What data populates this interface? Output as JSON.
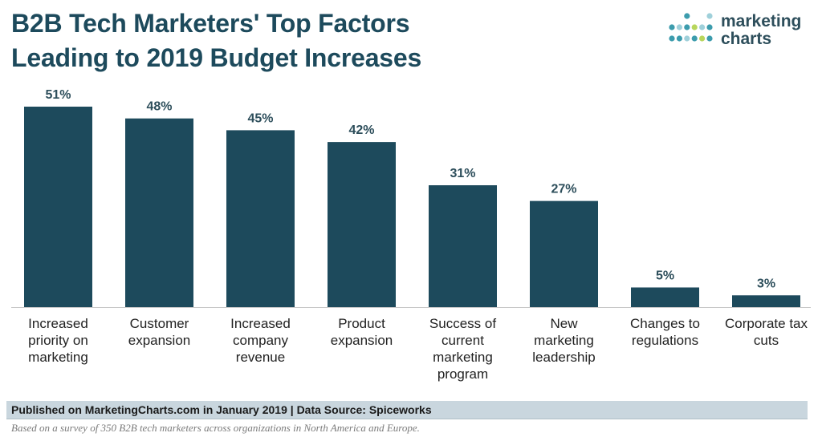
{
  "header": {
    "title_line1": "B2B Tech Marketers' Top Factors",
    "title_line2": "Leading to 2019 Budget Increases"
  },
  "logo": {
    "text_line1": "marketing",
    "text_line2": "charts",
    "icon": "dot-grid-logo-icon"
  },
  "colors": {
    "bar": "#1d4a5c",
    "title": "#1d4a5c",
    "footer_band": "#c9d6de",
    "logo_dot_teal": "#3c9cad",
    "logo_dot_light": "#9fd0da",
    "logo_dot_green": "#b8d65c"
  },
  "chart_data": {
    "type": "bar",
    "title": "B2B Tech Marketers' Top Factors Leading to 2019 Budget Increases",
    "categories": [
      "Increased priority on marketing",
      "Customer expansion",
      "Increased company revenue",
      "Product expansion",
      "Success of current marketing program",
      "New marketing leadership",
      "Changes to regulations",
      "Corporate tax cuts"
    ],
    "category_lines": [
      [
        "Increased",
        "priority on",
        "marketing"
      ],
      [
        "Customer",
        "expansion"
      ],
      [
        "Increased",
        "company",
        "revenue"
      ],
      [
        "Product",
        "expansion"
      ],
      [
        "Success of",
        "current",
        "marketing",
        "program"
      ],
      [
        "New",
        "marketing",
        "leadership"
      ],
      [
        "Changes to",
        "regulations"
      ],
      [
        "Corporate tax",
        "cuts"
      ]
    ],
    "values": [
      51,
      48,
      45,
      42,
      31,
      27,
      5,
      3
    ],
    "value_labels": [
      "51%",
      "48%",
      "45%",
      "42%",
      "31%",
      "27%",
      "5%",
      "3%"
    ],
    "unit": "%",
    "ylim": [
      0,
      51
    ],
    "grid": false,
    "legend": "none"
  },
  "footer": {
    "source": "Published on MarketingCharts.com in January 2019 | Data Source: Spiceworks",
    "note": "Based on a survey of 350 B2B tech marketers across organizations in North America and Europe."
  }
}
